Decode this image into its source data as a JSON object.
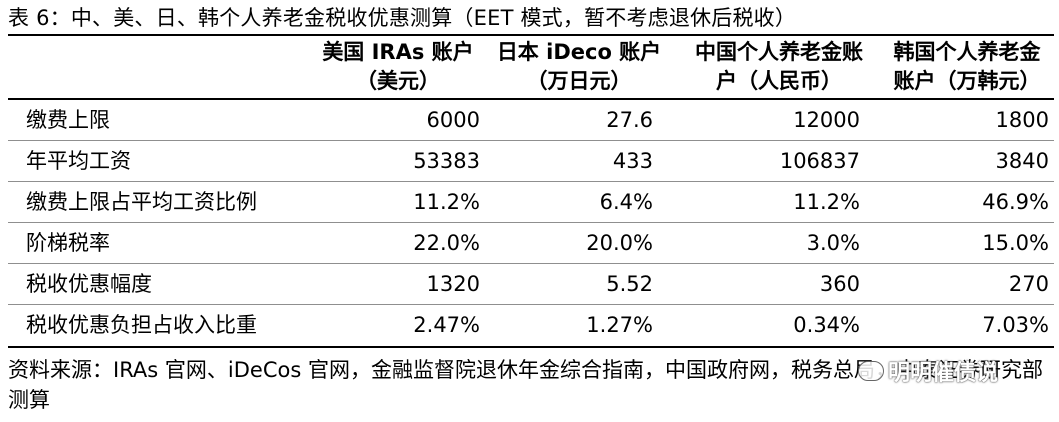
{
  "title": "表 6：中、美、日、韩个人养老金税收优惠测算（EET 模式，暂不考虑退休后税收）",
  "columns": [
    {
      "line1": "美国 IRAs 账户",
      "line2": "（美元）"
    },
    {
      "line1": "日本 iDeco 账户",
      "line2": "（万日元）"
    },
    {
      "line1": "中国个人养老金账",
      "line2": "户（人民币）"
    },
    {
      "line1": "韩国个人养老金",
      "line2": "账户（万韩元）"
    }
  ],
  "rows": [
    {
      "label": "缴费上限",
      "values": [
        "6000",
        "27.6",
        "12000",
        "1800"
      ]
    },
    {
      "label": "年平均工资",
      "values": [
        "53383",
        "433",
        "106837",
        "3840"
      ]
    },
    {
      "label": "缴费上限占平均工资比例",
      "values": [
        "11.2%",
        "6.4%",
        "11.2%",
        "46.9%"
      ]
    },
    {
      "label": "阶梯税率",
      "values": [
        "22.0%",
        "20.0%",
        "3.0%",
        "15.0%"
      ]
    },
    {
      "label": "税收优惠幅度",
      "values": [
        "1320",
        "5.52",
        "360",
        "270"
      ]
    },
    {
      "label": "税收优惠负担占收入比重",
      "values": [
        "2.47%",
        "1.27%",
        "0.34%",
        "7.03%"
      ]
    }
  ],
  "source": {
    "line1": "资料来源：IRAs 官网、iDeCos 官网，金融监督院退休年金综合指南，中国政府网，税务总局，中泰证券研究部",
    "line2": "测算"
  },
  "watermark": "明明催债说"
}
